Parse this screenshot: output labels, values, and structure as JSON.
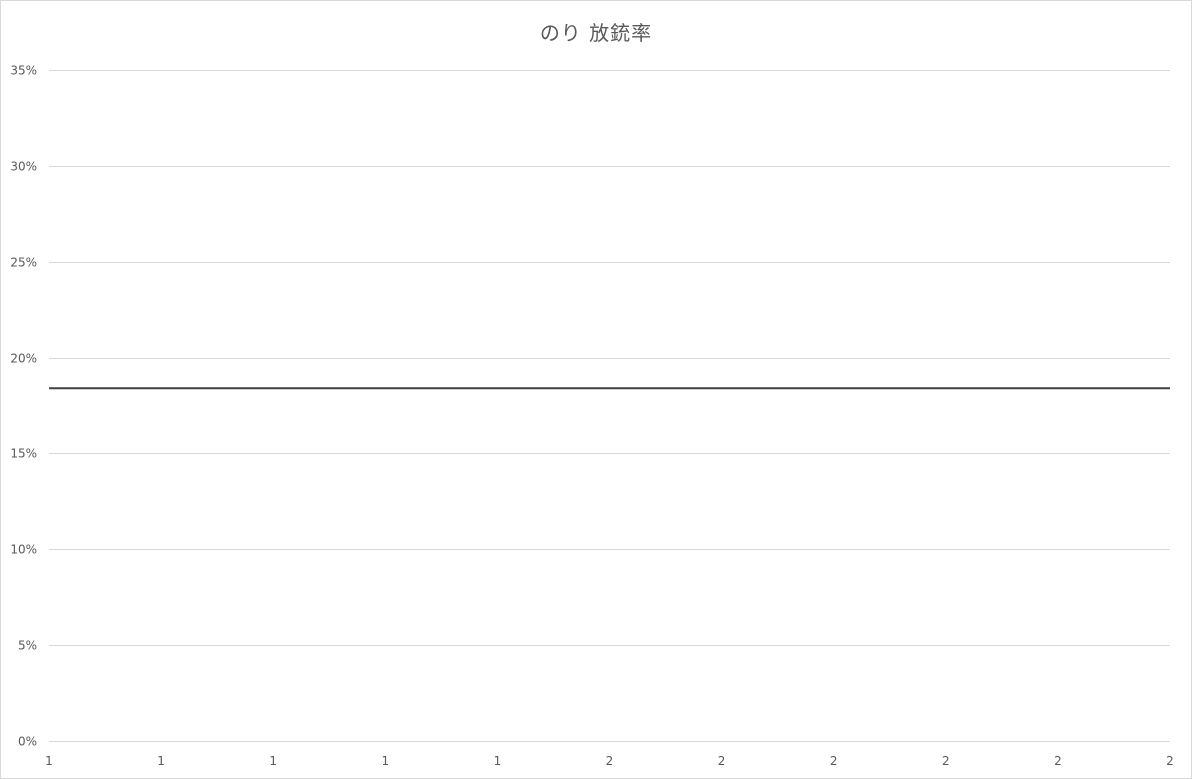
{
  "chart_data": {
    "type": "line",
    "title": "のり 放銃率",
    "xlabel": "",
    "ylabel": "",
    "ylim": [
      0,
      0.35
    ],
    "y_ticks": [
      "0%",
      "5%",
      "10%",
      "15%",
      "20%",
      "25%",
      "30%",
      "35%"
    ],
    "x_tick_labels": [
      "1",
      "1",
      "1",
      "1",
      "1",
      "2",
      "2",
      "2",
      "2",
      "2",
      "2"
    ],
    "grid": true,
    "legend": "none",
    "series": [
      {
        "values": [
          0.184,
          0.184,
          0.184,
          0.184,
          0.184,
          0.184,
          0.184,
          0.184,
          0.184,
          0.184,
          0.184
        ]
      }
    ],
    "colors": {
      "line": "#404040",
      "grid": "#d9d9d9",
      "text": "#595959"
    }
  }
}
